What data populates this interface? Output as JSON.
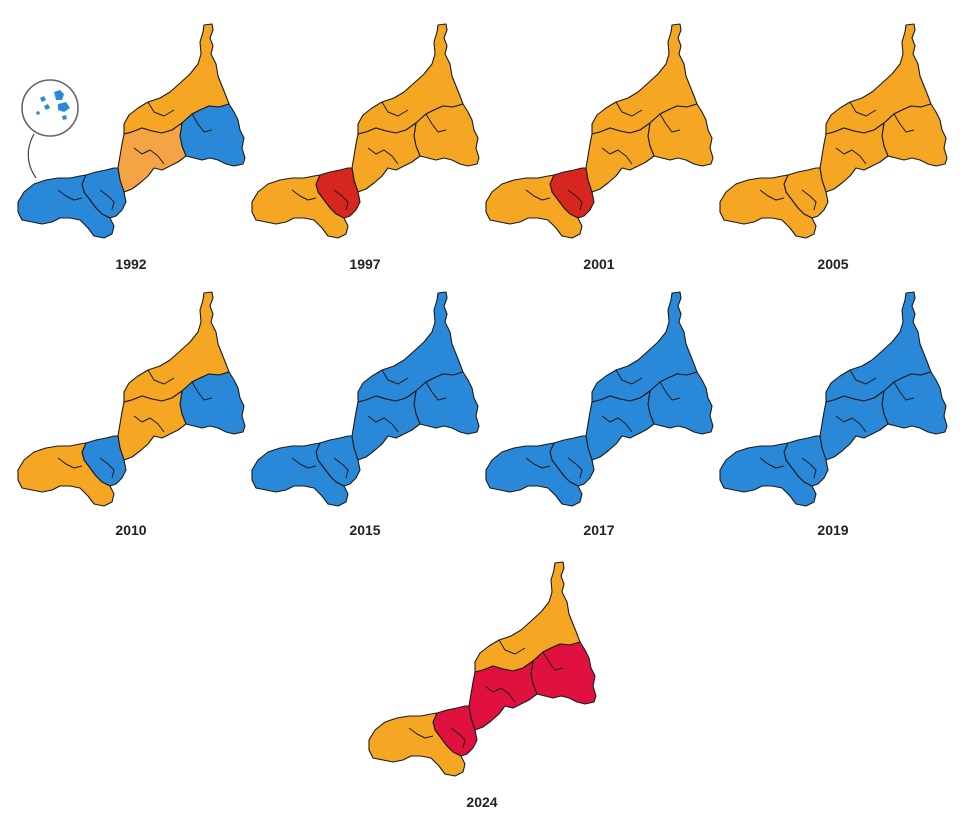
{
  "colors": {
    "orange": "#F5A623",
    "light_orange": "#F4A445",
    "blue": "#2A88D8",
    "dark_red": "#D7261E",
    "crimson": "#E0103F"
  },
  "maps": [
    {
      "year": "1992",
      "regions": {
        "north": "orange",
        "northeast": "blue",
        "center": "light_orange",
        "southwest": "blue",
        "west": "blue"
      },
      "inset": true
    },
    {
      "year": "1997",
      "regions": {
        "north": "orange",
        "northeast": "orange",
        "center": "orange",
        "southwest": "dark_red",
        "west": "orange"
      },
      "inset": false
    },
    {
      "year": "2001",
      "regions": {
        "north": "orange",
        "northeast": "orange",
        "center": "orange",
        "southwest": "dark_red",
        "west": "orange"
      },
      "inset": false
    },
    {
      "year": "2005",
      "regions": {
        "north": "orange",
        "northeast": "orange",
        "center": "orange",
        "southwest": "orange",
        "west": "orange"
      },
      "inset": false
    },
    {
      "year": "2010",
      "regions": {
        "north": "orange",
        "northeast": "blue",
        "center": "orange",
        "southwest": "blue",
        "west": "orange"
      },
      "inset": false
    },
    {
      "year": "2015",
      "regions": {
        "north": "blue",
        "northeast": "blue",
        "center": "blue",
        "southwest": "blue",
        "west": "blue"
      },
      "inset": false
    },
    {
      "year": "2017",
      "regions": {
        "north": "blue",
        "northeast": "blue",
        "center": "blue",
        "southwest": "blue",
        "west": "blue"
      },
      "inset": false
    },
    {
      "year": "2019",
      "regions": {
        "north": "blue",
        "northeast": "blue",
        "center": "blue",
        "southwest": "blue",
        "west": "blue"
      },
      "inset": false
    },
    {
      "year": "2024",
      "regions": {
        "north": "orange",
        "northeast": "crimson",
        "center": "crimson",
        "southwest": "crimson",
        "west": "orange"
      },
      "inset": false
    }
  ]
}
